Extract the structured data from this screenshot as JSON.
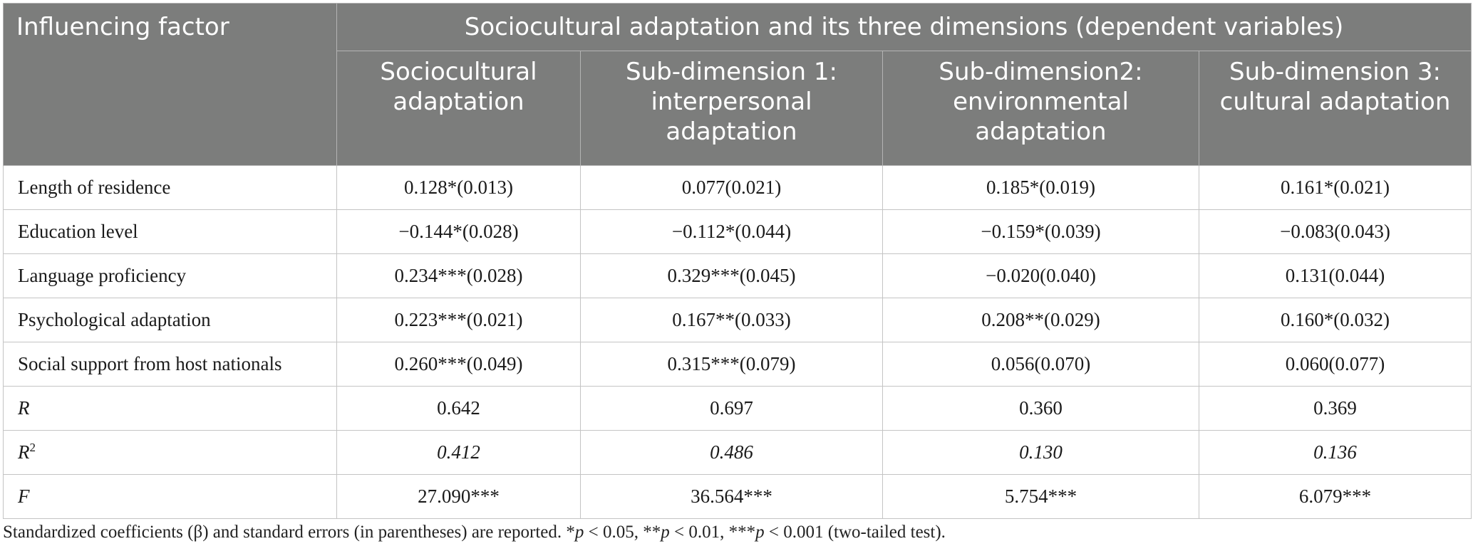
{
  "header": {
    "factor_label": "Influencing factor",
    "group_label": "Sociocultural adaptation and its three dimensions (dependent variables)",
    "columns": [
      "Sociocultural\nadaptation",
      "Sub-dimension 1:\ninterpersonal\nadaptation",
      "Sub-dimension2:\nenvironmental\nadaptation",
      "Sub-dimension 3:\ncultural adaptation"
    ]
  },
  "rows": [
    {
      "label": "Length of residence",
      "values": [
        "0.128*(0.013)",
        "0.077(0.021)",
        "0.185*(0.019)",
        "0.161*(0.021)"
      ]
    },
    {
      "label": "Education level",
      "values": [
        "−0.144*(0.028)",
        "−0.112*(0.044)",
        "−0.159*(0.039)",
        "−0.083(0.043)"
      ]
    },
    {
      "label": "Language proficiency",
      "values": [
        "0.234***(0.028)",
        "0.329***(0.045)",
        "−0.020(0.040)",
        "0.131(0.044)"
      ]
    },
    {
      "label": "Psychological adaptation",
      "values": [
        "0.223***(0.021)",
        "0.167**(0.033)",
        "0.208**(0.029)",
        "0.160*(0.032)"
      ]
    },
    {
      "label": "Social support from host nationals",
      "values": [
        "0.260***(0.049)",
        "0.315***(0.079)",
        "0.056(0.070)",
        "0.060(0.077)"
      ]
    },
    {
      "label": "R",
      "values": [
        "0.642",
        "0.697",
        "0.360",
        "0.369"
      ]
    },
    {
      "label_base": "R",
      "label_sup": "2",
      "values": [
        "0.412",
        "0.486",
        "0.130",
        "0.136"
      ]
    },
    {
      "label": "F",
      "values": [
        "27.090***",
        "36.564***",
        "5.754***",
        "6.079***"
      ]
    }
  ],
  "note": {
    "text_1": "Standardized coefficients (β) and standard errors (in parentheses) are reported. *",
    "p1": "p",
    "text_2": " < 0.05, **",
    "p2": "p",
    "text_3": " < 0.01, ***",
    "p3": "p",
    "text_4": " < 0.001 (two-tailed test)."
  }
}
